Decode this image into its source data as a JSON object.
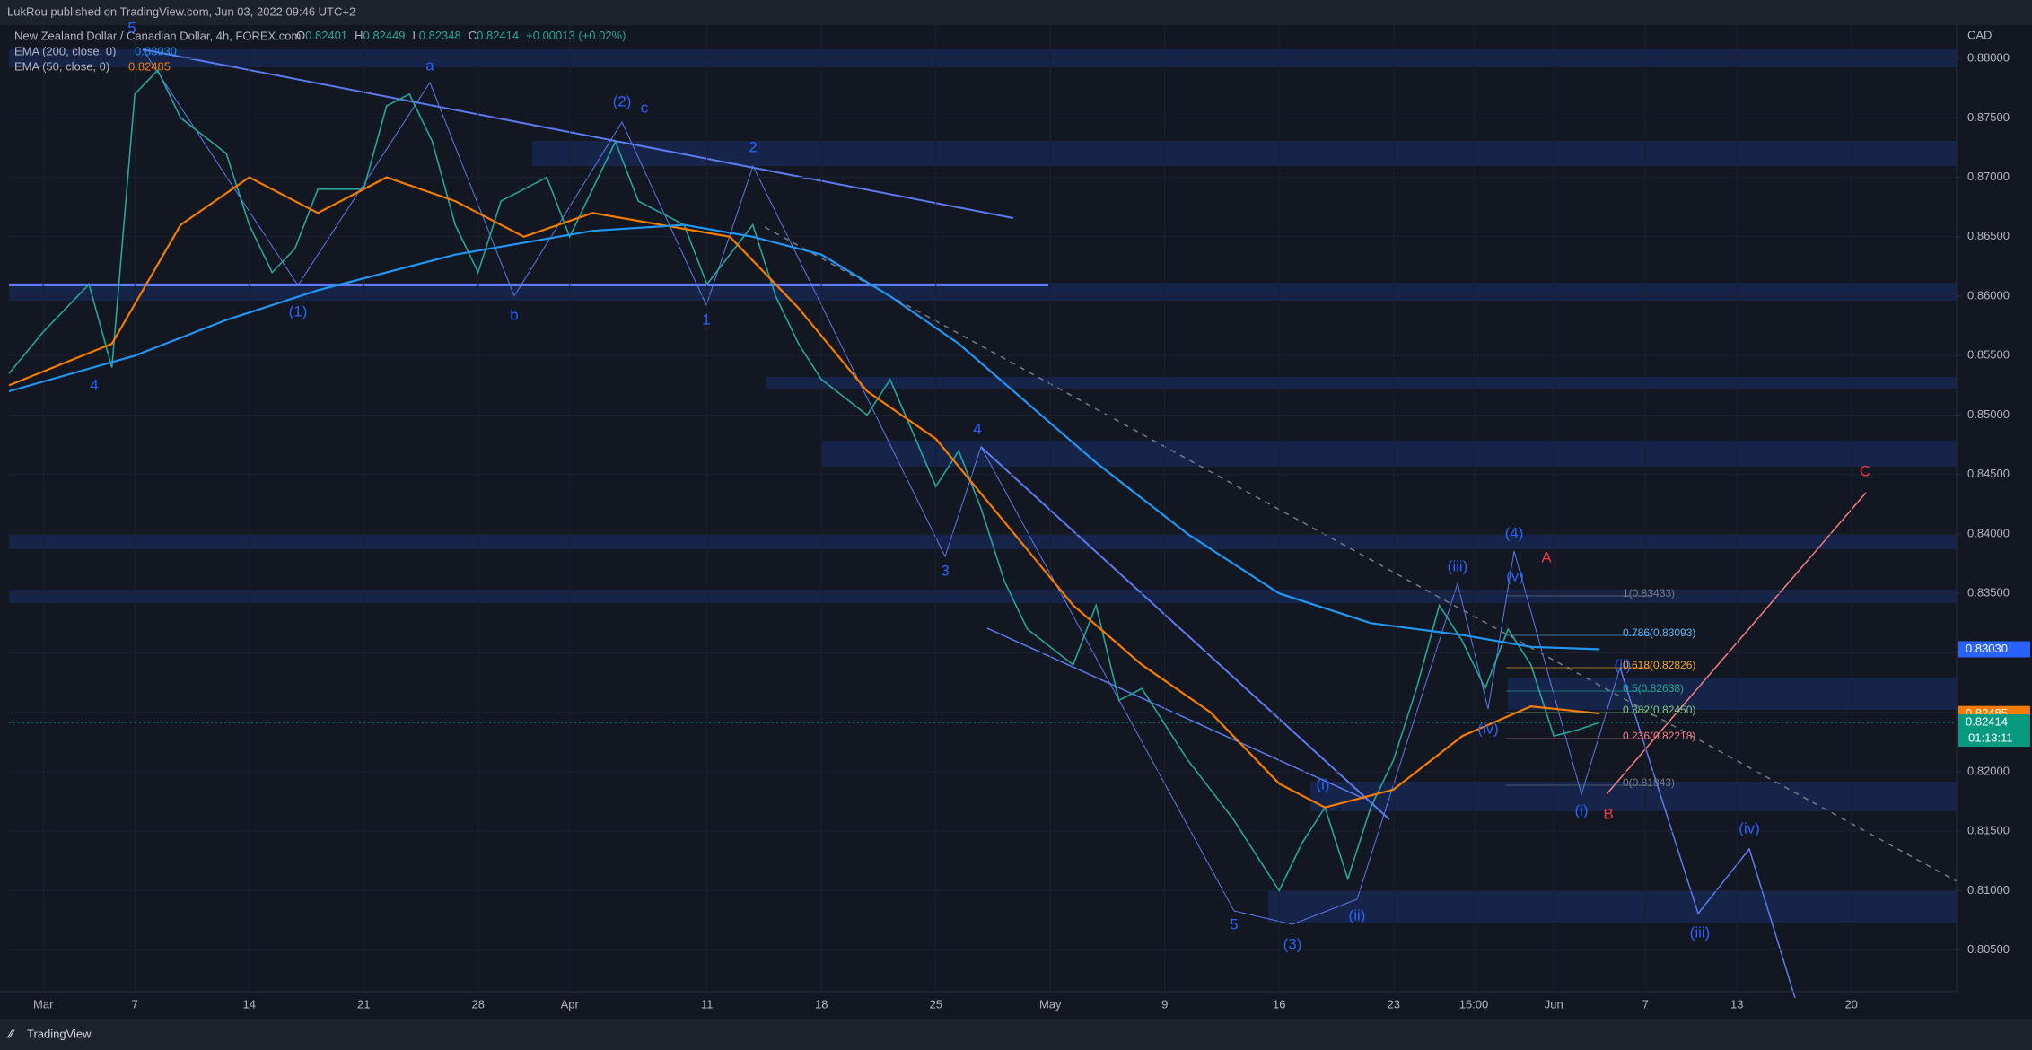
{
  "header": {
    "publisher": "LukRou published on TradingView.com, Jun 03, 2022 09:46 UTC+2"
  },
  "legend": {
    "symbol": "New Zealand Dollar / Canadian Dollar, 4h, FOREX.com",
    "ohlc": [
      [
        "O",
        "0.82401"
      ],
      [
        "H",
        "0.82449"
      ],
      [
        "L",
        "0.82348"
      ],
      [
        "C",
        "0.82414"
      ]
    ],
    "change": "+0.00013 (+0.02%)",
    "ema200": "EMA (200, close, 0)",
    "ema200_value": "0.83030",
    "ema50": "EMA (50, close, 0)",
    "ema50_value": "0.82485"
  },
  "axis": {
    "currency": "CAD"
  },
  "chart_data": {
    "type": "line",
    "xlim": [
      -1.5,
      83.6
    ],
    "ylim": [
      0.8015,
      0.8828
    ],
    "xticks": [
      {
        "value": 0,
        "label": "Mar"
      },
      {
        "value": 4,
        "label": "7"
      },
      {
        "value": 9,
        "label": "14"
      },
      {
        "value": 14,
        "label": "21"
      },
      {
        "value": 19,
        "label": "28"
      },
      {
        "value": 23,
        "label": "Apr"
      },
      {
        "value": 29,
        "label": "11"
      },
      {
        "value": 34,
        "label": "18"
      },
      {
        "value": 39,
        "label": "25"
      },
      {
        "value": 44,
        "label": "May"
      },
      {
        "value": 49,
        "label": "9"
      },
      {
        "value": 54,
        "label": "16"
      },
      {
        "value": 59,
        "label": "23"
      },
      {
        "value": 62.5,
        "label": "15:00"
      },
      {
        "value": 66,
        "label": "Jun"
      },
      {
        "value": 70,
        "label": "7"
      },
      {
        "value": 74,
        "label": "13"
      },
      {
        "value": 79,
        "label": "20"
      }
    ],
    "yticks": [
      {
        "value": 0.88,
        "label": "0.88000"
      },
      {
        "value": 0.875,
        "label": "0.87500"
      },
      {
        "value": 0.87,
        "label": "0.87000"
      },
      {
        "value": 0.865,
        "label": "0.86500"
      },
      {
        "value": 0.86,
        "label": "0.86000"
      },
      {
        "value": 0.855,
        "label": "0.85500"
      },
      {
        "value": 0.85,
        "label": "0.85000"
      },
      {
        "value": 0.845,
        "label": "0.84500"
      },
      {
        "value": 0.84,
        "label": "0.84000"
      },
      {
        "value": 0.835,
        "label": "0.83500"
      },
      {
        "value": 0.83,
        "label": "0.83000"
      },
      {
        "value": 0.825,
        "label": "0.82500"
      },
      {
        "value": 0.82,
        "label": "0.82000"
      },
      {
        "value": 0.815,
        "label": "0.81500"
      },
      {
        "value": 0.81,
        "label": "0.81000"
      },
      {
        "value": 0.805,
        "label": "0.80500"
      }
    ],
    "series": [
      {
        "name": "NZDCAD",
        "color": "#26a69a",
        "x": [
          -1.5,
          0,
          2,
          3,
          4,
          5,
          6,
          8,
          9,
          10,
          11,
          12,
          14,
          15,
          16,
          17,
          18,
          19,
          20,
          22,
          23,
          25,
          26,
          28,
          29,
          31,
          32,
          33,
          34,
          36,
          37,
          39,
          40,
          41,
          42,
          43,
          45,
          46,
          47,
          48,
          50,
          52,
          53,
          54,
          55,
          56,
          57,
          58,
          59,
          60,
          61,
          62,
          63,
          64,
          65,
          66,
          67,
          68
        ],
        "values": [
          0.8535,
          0.857,
          0.861,
          0.854,
          0.877,
          0.879,
          0.875,
          0.872,
          0.866,
          0.862,
          0.864,
          0.869,
          0.869,
          0.876,
          0.877,
          0.873,
          0.866,
          0.862,
          0.868,
          0.87,
          0.865,
          0.873,
          0.868,
          0.866,
          0.861,
          0.866,
          0.86,
          0.856,
          0.853,
          0.85,
          0.853,
          0.844,
          0.847,
          0.842,
          0.836,
          0.832,
          0.829,
          0.834,
          0.826,
          0.827,
          0.821,
          0.816,
          0.813,
          0.81,
          0.814,
          0.817,
          0.811,
          0.817,
          0.821,
          0.827,
          0.834,
          0.831,
          0.827,
          0.832,
          0.829,
          0.823,
          0.8235,
          0.82414
        ]
      },
      {
        "name": "EMA 50",
        "color": "#f57c00",
        "x": [
          -1.5,
          3,
          6,
          9,
          12,
          15,
          18,
          21,
          24,
          27,
          30,
          33,
          36,
          39,
          42,
          45,
          48,
          51,
          54,
          56,
          59,
          62,
          65,
          68
        ],
        "values": [
          0.8525,
          0.856,
          0.866,
          0.87,
          0.867,
          0.87,
          0.868,
          0.865,
          0.867,
          0.866,
          0.865,
          0.859,
          0.852,
          0.848,
          0.841,
          0.834,
          0.829,
          0.825,
          0.819,
          0.817,
          0.8185,
          0.823,
          0.8255,
          0.8249
        ]
      },
      {
        "name": "EMA 200",
        "color": "#2196f3",
        "x": [
          -1.5,
          4,
          8,
          12,
          18,
          24,
          28,
          31,
          34,
          37,
          40,
          43,
          46,
          50,
          54,
          58,
          62,
          65,
          68
        ],
        "values": [
          0.852,
          0.855,
          0.858,
          0.8605,
          0.8635,
          0.8655,
          0.866,
          0.865,
          0.8635,
          0.86,
          0.856,
          0.851,
          0.846,
          0.84,
          0.835,
          0.8325,
          0.8315,
          0.8305,
          0.8303
        ]
      }
    ]
  },
  "badges": [
    {
      "value": 0.8303,
      "label": "0.83030",
      "color": "#2962ff"
    },
    {
      "value": 0.82485,
      "label": "0.82485",
      "color": "#f57c00"
    },
    {
      "value": 0.82414,
      "label": "0.82414",
      "color": "#089981"
    }
  ],
  "countdown": "01:13:11",
  "wave_labels": [
    "5",
    "4",
    "(1)",
    "a",
    "b",
    "(2)",
    "c",
    "2",
    "1",
    "4",
    "3",
    "5",
    "(3)",
    "(i)",
    "(ii)",
    "(iii)",
    "(iv)",
    "(4)",
    "(v)",
    "A",
    "(ii)",
    "(i)",
    "B",
    "(iv)",
    "(iii)",
    "C"
  ],
  "fib_labels": [
    "1(0.83433)",
    "0.786(0.83093)",
    "0.618(0.82826)",
    "0.5(0.82638)",
    "0.382(0.82450)",
    "0.236(0.82218)",
    "0(0.81843)"
  ],
  "footer": {
    "brand": "TradingView"
  }
}
